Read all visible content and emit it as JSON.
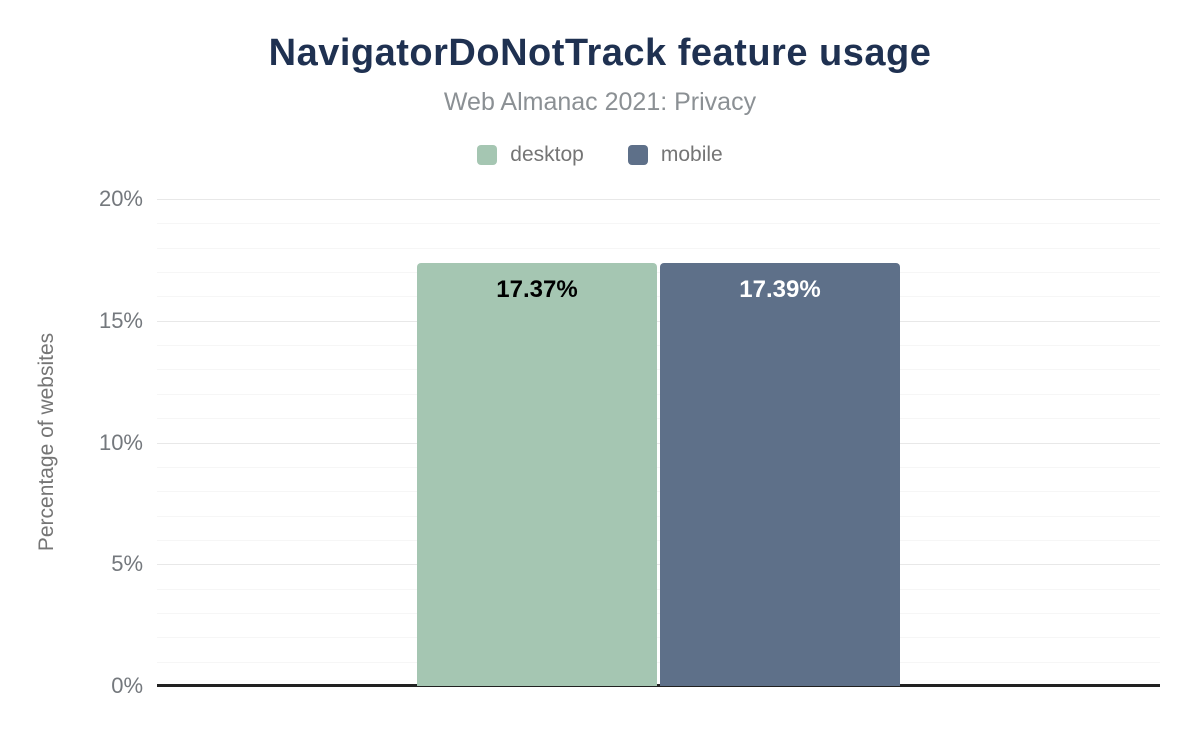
{
  "header": {
    "title": "NavigatorDoNotTrack feature usage",
    "subtitle": "Web Almanac 2021: Privacy"
  },
  "chart_data": {
    "type": "bar",
    "title": "NavigatorDoNotTrack feature usage",
    "subtitle": "Web Almanac 2021: Privacy",
    "categories": [
      "NavigatorDoNotTrack"
    ],
    "series": [
      {
        "name": "desktop",
        "values": [
          17.37
        ],
        "data_labels": [
          "17.37%"
        ],
        "color": "#a5c6b2",
        "label_color": "#000000"
      },
      {
        "name": "mobile",
        "values": [
          17.39
        ],
        "data_labels": [
          "17.39%"
        ],
        "color": "#5e7089",
        "label_color": "#ffffff"
      }
    ],
    "xlabel": "",
    "ylabel": "Percentage of websites",
    "ylim": [
      0,
      20
    ],
    "yticks": [
      0,
      5,
      10,
      15,
      20
    ],
    "ytick_labels": [
      "0%",
      "5%",
      "10%",
      "15%",
      "20%"
    ],
    "minor_grid_step": 1,
    "grid": true,
    "legend_position": "top"
  },
  "colors": {
    "title": "#1f3151",
    "subtitle": "#8b9094",
    "axis_text": "#74787d",
    "axis_line": "#212121",
    "grid_major": "#e8e8e8",
    "grid_minor": "#f6f6f6",
    "background": "#ffffff"
  }
}
